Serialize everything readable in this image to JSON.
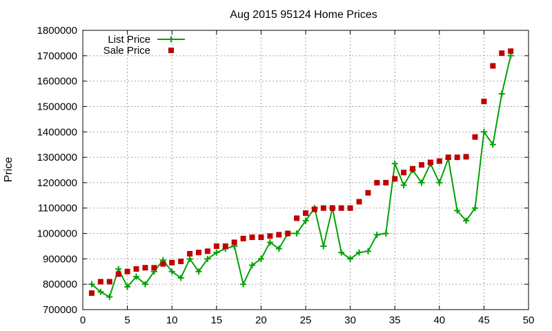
{
  "chart_data": {
    "type": "scatter",
    "title": "Aug 2015 95124 Home Prices",
    "ylabel": "Price",
    "xlabel": "",
    "xlim": [
      0,
      50
    ],
    "ylim": [
      700000,
      1800000
    ],
    "xticks": [
      0,
      5,
      10,
      15,
      20,
      25,
      30,
      35,
      40,
      45,
      50
    ],
    "yticks": [
      700000,
      800000,
      900000,
      1000000,
      1100000,
      1200000,
      1300000,
      1400000,
      1500000,
      1600000,
      1700000,
      1800000
    ],
    "grid": true,
    "legend_position": "top-left",
    "series": [
      {
        "name": "List Price",
        "style": "linespoints",
        "color": "#00a000",
        "marker": "plus",
        "x": [
          1,
          2,
          3,
          4,
          5,
          6,
          7,
          8,
          9,
          10,
          11,
          12,
          13,
          14,
          15,
          16,
          17,
          18,
          19,
          20,
          21,
          22,
          23,
          24,
          25,
          26,
          27,
          28,
          29,
          30,
          31,
          32,
          33,
          34,
          35,
          36,
          37,
          38,
          39,
          40,
          41,
          42,
          43,
          44,
          45,
          46,
          47,
          48
        ],
        "y": [
          800000,
          770000,
          750000,
          860000,
          790000,
          830000,
          800000,
          850000,
          895000,
          850000,
          825000,
          900000,
          850000,
          900000,
          925000,
          940000,
          950000,
          800000,
          875000,
          900000,
          965000,
          940000,
          1000000,
          1000000,
          1050000,
          1100000,
          950000,
          1100000,
          925000,
          900000,
          925000,
          930000,
          995000,
          1000000,
          1275000,
          1190000,
          1250000,
          1200000,
          1275000,
          1200000,
          1295000,
          1090000,
          1050000,
          1100000,
          1400000,
          1350000,
          1550000,
          1700000
        ]
      },
      {
        "name": "Sale Price",
        "style": "points",
        "color": "#c00000",
        "marker": "square",
        "x": [
          1,
          2,
          3,
          4,
          5,
          6,
          7,
          8,
          9,
          10,
          11,
          12,
          13,
          14,
          15,
          16,
          17,
          18,
          19,
          20,
          21,
          22,
          23,
          24,
          25,
          26,
          27,
          28,
          29,
          30,
          31,
          32,
          33,
          34,
          35,
          36,
          37,
          38,
          39,
          40,
          41,
          42,
          43,
          44,
          45,
          46,
          47,
          48
        ],
        "y": [
          765000,
          810000,
          810000,
          840000,
          850000,
          860000,
          865000,
          865000,
          880000,
          885000,
          890000,
          920000,
          925000,
          930000,
          950000,
          950000,
          965000,
          980000,
          985000,
          985000,
          990000,
          995000,
          1000000,
          1060000,
          1080000,
          1095000,
          1100000,
          1100000,
          1100000,
          1100000,
          1125000,
          1160000,
          1200000,
          1200000,
          1215000,
          1240000,
          1255000,
          1270000,
          1280000,
          1285000,
          1300000,
          1300000,
          1302000,
          1380000,
          1520000,
          1660000,
          1710000,
          1718000
        ]
      }
    ]
  }
}
